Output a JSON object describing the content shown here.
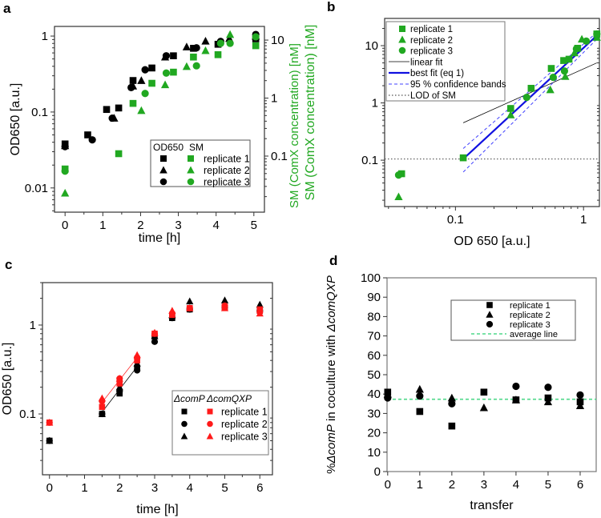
{
  "colors": {
    "black": "#000000",
    "green": "#21a821",
    "red": "#ff1a1a",
    "blue": "#1010e0",
    "avg": "#4fd88a"
  },
  "panel_labels": [
    "a",
    "b",
    "c",
    "d"
  ],
  "chart_data": [
    {
      "panel": "a",
      "type": "scatter",
      "xlabel": "time [h]",
      "ylabel": "OD650 [a.u.]",
      "y2label": "SM (ComX concentration) [nM]",
      "xlim": [
        -0.28,
        5.28
      ],
      "ylim": [
        0.0048,
        1.34
      ],
      "y2lim": [
        0.0108,
        17.2
      ],
      "yscale": "log",
      "y2scale": "log",
      "xticks": [
        0,
        1,
        2,
        3,
        4,
        5
      ],
      "xtick_labels": [
        "0",
        "1",
        "2",
        "3",
        "4",
        "5"
      ],
      "yticks": [
        0.01,
        0.1,
        1
      ],
      "ytick_labels": [
        "0.01",
        "0.1",
        "1"
      ],
      "y2ticks": [
        0.1,
        1,
        10
      ],
      "y2tick_labels": [
        "0.1",
        "1",
        "10"
      ],
      "legend": {
        "headers": [
          "OD650",
          "SM"
        ],
        "entries": [
          "replicate 1",
          "replicate 2",
          "replicate 3"
        ],
        "placement": "lower-right"
      },
      "series": [
        {
          "name": "OD650 replicate 1",
          "marker": "square",
          "color": "black",
          "axis": "left",
          "points": [
            [
              0,
              0.038
            ],
            [
              0.6,
              0.05
            ],
            [
              1.1,
              0.108
            ],
            [
              1.42,
              0.113
            ],
            [
              1.8,
              0.26
            ],
            [
              2.3,
              0.38
            ],
            [
              2.87,
              0.55
            ],
            [
              3.4,
              0.69
            ],
            [
              4.05,
              0.78
            ],
            [
              5.05,
              0.92
            ]
          ]
        },
        {
          "name": "OD650 replicate 2",
          "marker": "triangle",
          "color": "black",
          "axis": "left",
          "points": [
            [
              0,
              0.036
            ],
            [
              1.3,
              0.083
            ],
            [
              1.8,
              0.22
            ],
            [
              2.02,
              0.26
            ],
            [
              2.65,
              0.53
            ],
            [
              3.22,
              0.72
            ],
            [
              3.72,
              0.86
            ],
            [
              4.35,
              0.93
            ],
            [
              5.05,
              1.0
            ]
          ]
        },
        {
          "name": "OD650 replicate 3",
          "marker": "circle",
          "color": "black",
          "axis": "left",
          "points": [
            [
              0,
              0.035
            ],
            [
              0.72,
              0.043
            ],
            [
              1.25,
              0.083
            ],
            [
              1.75,
              0.21
            ],
            [
              2.12,
              0.36
            ],
            [
              2.68,
              0.55
            ],
            [
              3.48,
              0.7
            ],
            [
              4.12,
              0.85
            ],
            [
              5.05,
              1.05
            ]
          ]
        },
        {
          "name": "SM replicate 1",
          "marker": "square",
          "color": "green",
          "axis": "right",
          "points": [
            [
              0,
              0.06
            ],
            [
              1.42,
              0.11
            ],
            [
              1.8,
              0.81
            ],
            [
              2.3,
              1.8
            ],
            [
              2.87,
              2.8
            ],
            [
              3.4,
              5.1
            ],
            [
              4.05,
              5.6
            ],
            [
              5.05,
              8
            ]
          ]
        },
        {
          "name": "SM replicate 2",
          "marker": "triangle",
          "color": "green",
          "axis": "right",
          "points": [
            [
              0,
              0.023
            ],
            [
              2.02,
              0.61
            ],
            [
              2.65,
              1.7
            ],
            [
              3.22,
              3.5
            ],
            [
              3.72,
              6.6
            ],
            [
              4.37,
              12.5
            ]
          ]
        },
        {
          "name": "SM replicate 3",
          "marker": "circle",
          "color": "green",
          "axis": "right",
          "points": [
            [
              0,
              0.055
            ],
            [
              2.12,
              1.2
            ],
            [
              2.68,
              2.7
            ],
            [
              3.48,
              3.6
            ],
            [
              4.12,
              8.8
            ],
            [
              4.37,
              8.8
            ],
            [
              5.05,
              11.4
            ]
          ]
        }
      ]
    },
    {
      "panel": "b",
      "type": "scatter",
      "xlabel": "OD 650 [a.u.]",
      "ylabel": "SM (ComX concentration) [nM]",
      "xlim": [
        0.028,
        1.33
      ],
      "ylim": [
        0.0155,
        29.9
      ],
      "xscale": "log",
      "yscale": "log",
      "xticks": [
        0.1,
        1
      ],
      "xtick_labels": [
        "0.1",
        "1"
      ],
      "yticks": [
        0.1,
        1,
        10
      ],
      "ytick_labels": [
        "0.1",
        "1",
        "10"
      ],
      "legend": {
        "entries": [
          "replicate 1",
          "replicate 2",
          "replicate 3",
          "linear fit",
          "best fit (eq 1)",
          "95 % confidence bands",
          "LOD of SM"
        ],
        "placement": "top-left"
      },
      "series": [
        {
          "name": "replicate 1",
          "marker": "square",
          "color": "green",
          "points": [
            [
              0.038,
              0.058
            ],
            [
              0.115,
              0.11
            ],
            [
              0.27,
              0.8
            ],
            [
              0.39,
              1.8
            ],
            [
              0.56,
              4
            ],
            [
              0.7,
              5.5
            ],
            [
              0.77,
              5.8
            ],
            [
              0.9,
              9
            ],
            [
              1.27,
              16
            ]
          ]
        },
        {
          "name": "replicate 2",
          "marker": "triangle",
          "color": "green",
          "points": [
            [
              0.036,
              0.023
            ],
            [
              0.27,
              0.62
            ],
            [
              0.55,
              1.7
            ],
            [
              0.72,
              2.9
            ],
            [
              0.85,
              7.5
            ],
            [
              0.97,
              13
            ],
            [
              1.27,
              14
            ]
          ]
        },
        {
          "name": "replicate 3",
          "marker": "circle",
          "color": "green",
          "points": [
            [
              0.036,
              0.055
            ],
            [
              0.36,
              1.25
            ],
            [
              0.58,
              2.8
            ],
            [
              0.71,
              3.6
            ],
            [
              0.88,
              8.8
            ],
            [
              1.05,
              12
            ],
            [
              1.27,
              16
            ]
          ]
        }
      ],
      "lines": [
        {
          "name": "linear fit",
          "style": "thin-black",
          "points": [
            [
              0.115,
              0.45
            ],
            [
              1.27,
              5
            ]
          ]
        },
        {
          "name": "best fit (eq 1)",
          "style": "blue",
          "points": [
            [
              0.115,
              0.105
            ],
            [
              1.27,
              15
            ]
          ]
        },
        {
          "name": "95 % confidence band upper",
          "style": "blue-dash",
          "points": [
            [
              0.115,
              0.16
            ],
            [
              1.27,
              17
            ]
          ]
        },
        {
          "name": "95 % confidence band lower",
          "style": "blue-dash",
          "points": [
            [
              0.115,
              0.062
            ],
            [
              1.27,
              13
            ]
          ]
        },
        {
          "name": "LOD of SM",
          "style": "dotted",
          "points": [
            [
              0.028,
              0.105
            ],
            [
              1.33,
              0.105
            ]
          ]
        }
      ]
    },
    {
      "panel": "c",
      "type": "scatter",
      "xlabel": "time [h]",
      "ylabel": "OD650 [a.u.]",
      "xlim": [
        -0.2,
        6.36
      ],
      "ylim": [
        0.0207,
        3.0
      ],
      "yscale": "log",
      "xticks": [
        0,
        1,
        2,
        3,
        4,
        5,
        6
      ],
      "xtick_labels": [
        "0",
        "1",
        "2",
        "3",
        "4",
        "5",
        "6"
      ],
      "yticks": [
        0.1,
        1
      ],
      "ytick_labels": [
        "0.1",
        "1"
      ],
      "legend": {
        "headers": [
          "ΔcomP",
          "ΔcomQXP"
        ],
        "entries": [
          "replicate 1",
          "replicate 2",
          "replicate 3"
        ],
        "placement": "lower-right"
      },
      "series": [
        {
          "name": "ΔcomP replicate 1",
          "marker": "square",
          "color": "black",
          "points": [
            [
              0,
              0.05
            ],
            [
              1.5,
              0.1
            ],
            [
              2,
              0.17
            ],
            [
              2.5,
              0.33
            ],
            [
              3,
              0.75
            ],
            [
              3.5,
              1.2
            ],
            [
              4,
              1.5
            ],
            [
              5,
              1.6
            ],
            [
              6,
              1.45
            ]
          ]
        },
        {
          "name": "ΔcomP replicate 2",
          "marker": "circle",
          "color": "black",
          "points": [
            [
              0,
              0.05
            ],
            [
              1.5,
              0.1
            ],
            [
              2,
              0.18
            ],
            [
              2.5,
              0.31
            ],
            [
              3,
              0.65
            ],
            [
              3.5,
              1.2
            ],
            [
              4,
              1.5
            ],
            [
              5,
              1.6
            ],
            [
              6,
              1.45
            ]
          ]
        },
        {
          "name": "ΔcomP replicate 3",
          "marker": "triangle",
          "color": "black",
          "points": [
            [
              0,
              0.05
            ],
            [
              1.5,
              0.1
            ],
            [
              2,
              0.2
            ],
            [
              2.5,
              0.37
            ],
            [
              3,
              0.75
            ],
            [
              3.5,
              1.3
            ],
            [
              4,
              1.85
            ],
            [
              5,
              1.9
            ],
            [
              6,
              1.7
            ]
          ]
        },
        {
          "name": "ΔcomQXP replicate 1",
          "marker": "square",
          "color": "red",
          "points": [
            [
              0,
              0.08
            ],
            [
              1.5,
              0.12
            ],
            [
              2,
              0.22
            ],
            [
              2.5,
              0.4
            ],
            [
              3,
              0.8
            ],
            [
              3.5,
              1.3
            ],
            [
              4,
              1.55
            ],
            [
              5,
              1.6
            ],
            [
              6,
              1.5
            ]
          ]
        },
        {
          "name": "ΔcomQXP replicate 2",
          "marker": "circle",
          "color": "red",
          "points": [
            [
              0,
              0.08
            ],
            [
              1.5,
              0.14
            ],
            [
              2,
              0.25
            ],
            [
              2.5,
              0.43
            ],
            [
              3,
              0.8
            ],
            [
              3.5,
              1.35
            ],
            [
              4,
              1.55
            ],
            [
              5,
              1.65
            ],
            [
              6,
              1.4
            ]
          ]
        },
        {
          "name": "ΔcomQXP replicate 3",
          "marker": "triangle",
          "color": "red",
          "points": [
            [
              0,
              0.08
            ],
            [
              1.5,
              0.15
            ],
            [
              2,
              0.25
            ],
            [
              2.5,
              0.46
            ],
            [
              3,
              0.82
            ],
            [
              3.5,
              1.45
            ],
            [
              4,
              1.55
            ],
            [
              5,
              1.55
            ],
            [
              6,
              1.35
            ]
          ]
        }
      ],
      "lines": [
        {
          "name": "ΔcomP exponential fit",
          "style": "thin-black",
          "points": [
            [
              1.5,
              0.105
            ],
            [
              2.5,
              0.34
            ]
          ]
        },
        {
          "name": "ΔcomQXP exponential fit",
          "style": "thin-red",
          "points": [
            [
              1.5,
              0.135
            ],
            [
              2.5,
              0.43
            ]
          ]
        }
      ]
    },
    {
      "panel": "d",
      "type": "scatter",
      "xlabel": "transfer",
      "ylabel_parts": [
        "%",
        "ΔcomP",
        "  in coculture with ",
        "ΔcomQXP"
      ],
      "xlim": [
        -0.02,
        6.5
      ],
      "ylim": [
        0,
        100
      ],
      "xticks": [
        0,
        1,
        2,
        3,
        4,
        5,
        6
      ],
      "xtick_labels": [
        "0",
        "1",
        "2",
        "3",
        "4",
        "5",
        "6"
      ],
      "yticks": [
        0,
        10,
        20,
        30,
        40,
        50,
        60,
        70,
        80,
        90,
        100
      ],
      "ytick_labels": [
        "0",
        "10",
        "20",
        "30",
        "40",
        "50",
        "60",
        "70",
        "80",
        "90",
        "100"
      ],
      "legend": {
        "entries": [
          "replicate 1",
          "replicate 2",
          "replicate 3",
          "average line"
        ],
        "placement": "top-right"
      },
      "average": 37.3,
      "series": [
        {
          "name": "replicate 1",
          "marker": "square",
          "color": "black",
          "points": [
            [
              0,
              41
            ],
            [
              1,
              31
            ],
            [
              2,
              23.5
            ],
            [
              3,
              41
            ],
            [
              4,
              37
            ],
            [
              5,
              38
            ],
            [
              6,
              36
            ]
          ]
        },
        {
          "name": "replicate 2",
          "marker": "triangle",
          "color": "black",
          "points": [
            [
              0,
              40
            ],
            [
              1,
              42.5
            ],
            [
              2,
              38
            ],
            [
              3,
              33
            ],
            [
              4,
              37
            ],
            [
              5,
              36
            ],
            [
              6,
              34
            ]
          ]
        },
        {
          "name": "replicate 3",
          "marker": "circle",
          "color": "black",
          "points": [
            [
              0,
              38
            ],
            [
              1,
              39
            ],
            [
              2,
              35
            ],
            [
              4,
              44
            ],
            [
              5,
              43.5
            ],
            [
              6,
              39.5
            ]
          ]
        }
      ]
    }
  ]
}
